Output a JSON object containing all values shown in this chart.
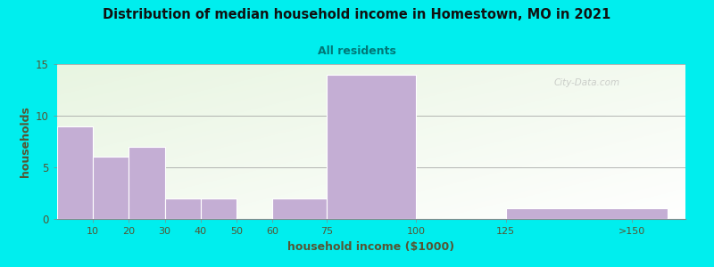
{
  "title": "Distribution of median household income in Homestown, MO in 2021",
  "subtitle": "All residents",
  "xlabel": "household income ($1000)",
  "ylabel": "households",
  "background_color": "#00EEEE",
  "bar_color": "#c4aed4",
  "bar_edge_color": "#c4aed4",
  "title_color": "#111111",
  "subtitle_color": "#007777",
  "axis_label_color": "#555533",
  "tick_label_color": "#555533",
  "watermark": "City-Data.com",
  "values": [
    9,
    6,
    7,
    2,
    2,
    0,
    2,
    14,
    0,
    1
  ],
  "bar_lefts": [
    0,
    10,
    20,
    30,
    40,
    50,
    60,
    75,
    100,
    125
  ],
  "bar_widths": [
    10,
    10,
    10,
    10,
    10,
    10,
    15,
    25,
    25,
    45
  ],
  "xtick_labels": [
    "10",
    "20",
    "30",
    "40",
    "50",
    "60",
    "75",
    "100",
    "125",
    ">150"
  ],
  "xtick_positions": [
    10,
    20,
    30,
    40,
    50,
    60,
    75,
    100,
    125,
    160
  ],
  "xlim": [
    0,
    175
  ],
  "ylim": [
    0,
    15
  ],
  "yticks": [
    0,
    5,
    10,
    15
  ]
}
